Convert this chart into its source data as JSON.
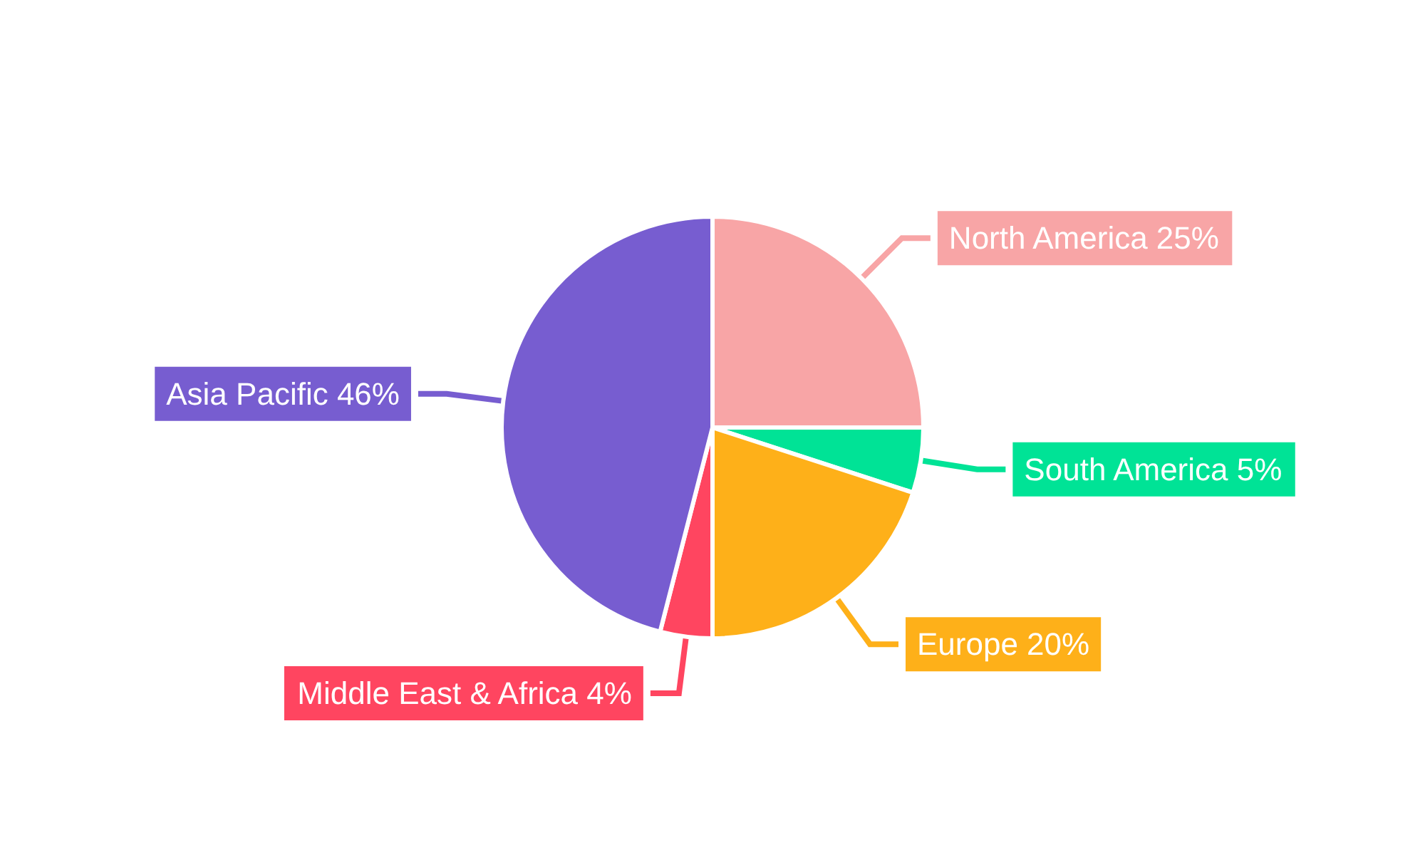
{
  "chart_data": {
    "type": "pie",
    "categories": [
      "North America",
      "South America",
      "Europe",
      "Middle East & Africa",
      "Asia Pacific"
    ],
    "values": [
      25,
      5,
      20,
      4,
      46
    ],
    "value_labels": [
      "25%",
      "5%",
      "20%",
      "4%",
      "46%"
    ],
    "colors": [
      "#f8a5a6",
      "#00e396",
      "#feb019",
      "#ff4560",
      "#775dd0"
    ],
    "legend": false
  }
}
